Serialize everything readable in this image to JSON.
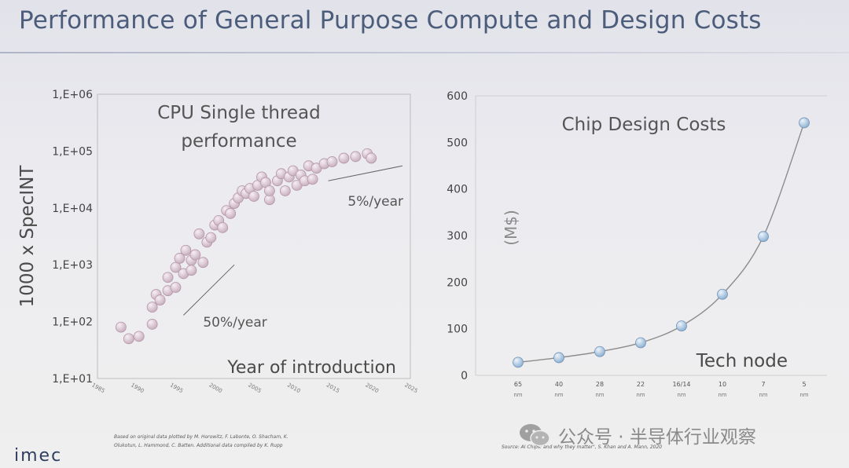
{
  "slide": {
    "title": "Performance of General Purpose Compute and Design Costs",
    "logo": "imec",
    "watermark": "公众号 · 半导体行业观察"
  },
  "colors": {
    "title": "#4b5d7b",
    "scatter_marker": "#c9b1c0",
    "line_marker": "#8fb2d4",
    "line": "#8c8c8c"
  },
  "chart_data": [
    {
      "type": "scatter",
      "title": "CPU Single thread performance",
      "title_lines": [
        "CPU Single thread",
        "performance"
      ],
      "xlabel": "Year of introduction",
      "ylabel": "1000 x SpecINT",
      "y_scale": "log",
      "xlim": [
        1985,
        2025
      ],
      "ylim": [
        10,
        1000000
      ],
      "x_ticks": [
        "1985",
        "1990",
        "1995",
        "2000",
        "2005",
        "2010",
        "2015",
        "2020",
        "2025"
      ],
      "y_ticks": [
        "1,E+01",
        "1,E+02",
        "1,E+03",
        "1,E+04",
        "1,E+05",
        "1,E+06"
      ],
      "annotations": [
        "50%/year",
        "5%/year"
      ],
      "source": [
        "Based on original data plotted by M. Horowitz, F. Labonte, O. Shacham, K.",
        "Olukotun, L. Hammond, C. Batten. Additional data compiled by K. Rupp"
      ],
      "points": [
        {
          "x": 1988,
          "y": 80
        },
        {
          "x": 1989,
          "y": 50
        },
        {
          "x": 1990.3,
          "y": 55
        },
        {
          "x": 1992,
          "y": 90
        },
        {
          "x": 1992,
          "y": 180
        },
        {
          "x": 1992.5,
          "y": 300
        },
        {
          "x": 1993,
          "y": 240
        },
        {
          "x": 1994,
          "y": 350
        },
        {
          "x": 1994,
          "y": 600
        },
        {
          "x": 1995,
          "y": 400
        },
        {
          "x": 1995,
          "y": 900
        },
        {
          "x": 1995.5,
          "y": 1300
        },
        {
          "x": 1996,
          "y": 700
        },
        {
          "x": 1996.3,
          "y": 1800
        },
        {
          "x": 1997,
          "y": 1200
        },
        {
          "x": 1997,
          "y": 800
        },
        {
          "x": 1997.5,
          "y": 1500
        },
        {
          "x": 1998,
          "y": 3500
        },
        {
          "x": 1998.5,
          "y": 1100
        },
        {
          "x": 1999,
          "y": 2500
        },
        {
          "x": 1999.5,
          "y": 3000
        },
        {
          "x": 2000,
          "y": 5000
        },
        {
          "x": 2000.5,
          "y": 6000
        },
        {
          "x": 2001,
          "y": 4500
        },
        {
          "x": 2001.5,
          "y": 9000
        },
        {
          "x": 2002,
          "y": 8000
        },
        {
          "x": 2002.5,
          "y": 12000
        },
        {
          "x": 2003,
          "y": 15000
        },
        {
          "x": 2003.5,
          "y": 20000
        },
        {
          "x": 2004,
          "y": 18000
        },
        {
          "x": 2004.5,
          "y": 22000
        },
        {
          "x": 2005,
          "y": 16000
        },
        {
          "x": 2005.5,
          "y": 25000
        },
        {
          "x": 2006,
          "y": 35000
        },
        {
          "x": 2006.5,
          "y": 28000
        },
        {
          "x": 2007,
          "y": 14000
        },
        {
          "x": 2007,
          "y": 20000
        },
        {
          "x": 2008,
          "y": 30000
        },
        {
          "x": 2008.5,
          "y": 40000
        },
        {
          "x": 2009,
          "y": 20000
        },
        {
          "x": 2009.5,
          "y": 35000
        },
        {
          "x": 2010,
          "y": 45000
        },
        {
          "x": 2010.5,
          "y": 25000
        },
        {
          "x": 2011,
          "y": 38000
        },
        {
          "x": 2011.5,
          "y": 30000
        },
        {
          "x": 2012,
          "y": 55000
        },
        {
          "x": 2012.5,
          "y": 32000
        },
        {
          "x": 2013,
          "y": 50000
        },
        {
          "x": 2014,
          "y": 60000
        },
        {
          "x": 2015,
          "y": 65000
        },
        {
          "x": 2016.5,
          "y": 75000
        },
        {
          "x": 2018,
          "y": 80000
        },
        {
          "x": 2019.5,
          "y": 90000
        },
        {
          "x": 2020,
          "y": 75000
        }
      ]
    },
    {
      "type": "line",
      "title": "Chip Design Costs",
      "xlabel": "Tech node",
      "ylabel": "(M$)",
      "ylim": [
        0,
        600
      ],
      "y_ticks": [
        "0",
        "100",
        "200",
        "300",
        "400",
        "500",
        "600"
      ],
      "categories": [
        "65 nm",
        "40 nm",
        "28 nm",
        "22 nm",
        "16/14 nm",
        "10 nm",
        "7 nm",
        "5 nm"
      ],
      "category_lines": [
        [
          "65",
          "nm"
        ],
        [
          "40",
          "nm"
        ],
        [
          "28",
          "nm"
        ],
        [
          "22",
          "nm"
        ],
        [
          "16/14",
          "nm"
        ],
        [
          "10",
          "nm"
        ],
        [
          "7",
          "nm"
        ],
        [
          "5",
          "nm"
        ]
      ],
      "values": [
        28,
        38,
        51,
        70,
        106,
        174,
        298,
        542
      ],
      "source": "Source: AI Chips: and why they matter\", S. Khan and A. Mann, 2020"
    }
  ]
}
